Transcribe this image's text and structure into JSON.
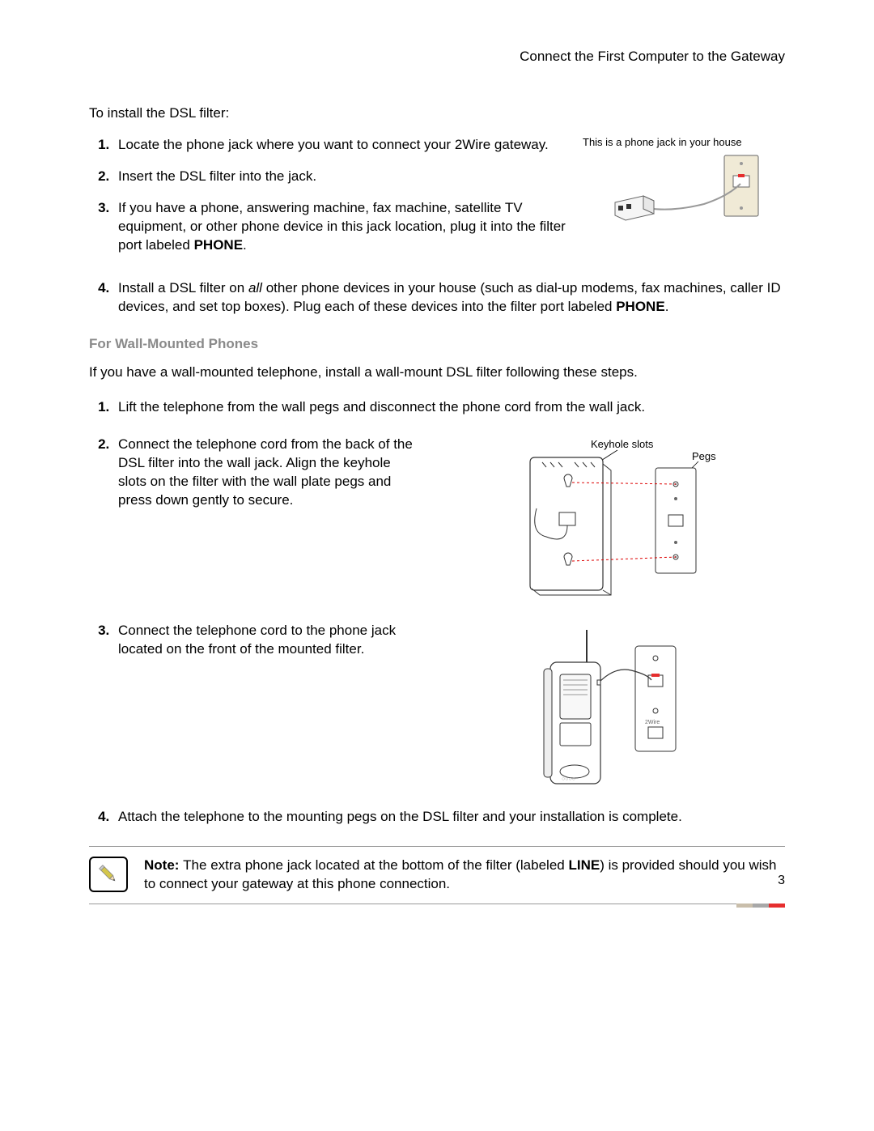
{
  "header": {
    "title": "Connect the First Computer to the Gateway"
  },
  "intro": "To install the DSL filter:",
  "steps1": {
    "s1": "Locate the phone jack where you want to connect your 2Wire gateway.",
    "s2": "Insert the DSL filter into the jack.",
    "s3_a": "If you have a phone, answering machine, fax machine, satellite TV equipment, or other phone device in this jack location, plug it into the filter port labeled ",
    "s3_b": "PHONE",
    "s3_c": ".",
    "s4_a": "Install a DSL filter on ",
    "s4_b": "all",
    "s4_c": " other phone devices in your house (such as dial-up modems, fax machines, caller ID devices, and set top boxes). Plug each of these devices into the filter port labeled ",
    "s4_d": "PHONE",
    "s4_e": "."
  },
  "figure1": {
    "caption": "This is a phone jack in your house"
  },
  "subheading": "For Wall-Mounted Phones",
  "wallIntro": "If you have a wall-mounted telephone, install a wall-mount DSL filter following these steps.",
  "steps2": {
    "s1": "Lift the telephone from the wall pegs and disconnect the phone cord from the wall jack.",
    "s2": "Connect the telephone cord from the back of the DSL filter into the wall jack. Align the keyhole slots on the filter with the wall plate pegs and press down gently to secure.",
    "s3": "Connect the telephone cord to the phone jack located on the front of the mounted filter.",
    "s4": "Attach the telephone to the mounting pegs on the DSL filter and your installation is complete."
  },
  "figure2": {
    "label1": "Keyhole slots",
    "label2": "Pegs"
  },
  "note": {
    "prefix": "Note: ",
    "a": "The extra phone jack located at the bottom of the filter (labeled ",
    "b": "LINE",
    "c": ") is provided should you wish to connect your gateway at this phone connection."
  },
  "pageNumber": "3",
  "footer": {
    "colors": [
      "#c9beab",
      "#a8a8a8",
      "#e62e2e"
    ],
    "widths": [
      20,
      20,
      20
    ]
  },
  "pencil_color": "#d4c64a"
}
